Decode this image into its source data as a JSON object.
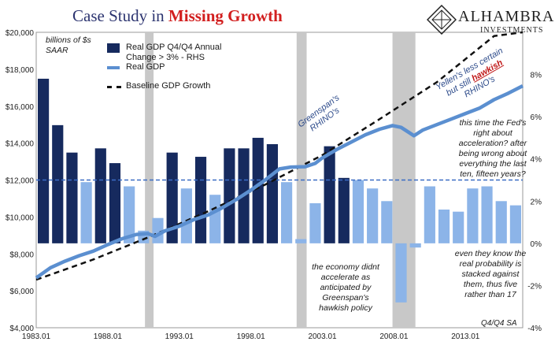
{
  "header": {
    "title_prefix": "Case Study in ",
    "title_highlight": "Missing Growth",
    "logo_name": "ALHAMBRA",
    "logo_sub": "INVESTMENTS"
  },
  "units_label": "billions of $s\nSAAR",
  "source_label": "Q4/Q4 SA",
  "legend": {
    "bars": "Real GDP Q4/Q4 Annual Change > 3% - RHS",
    "line": "Real GDP",
    "baseline": "Baseline GDP Growth"
  },
  "annotations": {
    "greenspan_rhinos": "Greenspan's\nRHINO's",
    "yellen_line1": "Yellen's less certain",
    "yellen_line2_pre": "but still ",
    "yellen_hawkish": "hawkish",
    "yellen_line3": "RHINO's",
    "fed_right": "this time the Fed's\nright about\nacceleration? after\nbeing wrong about\neverything the last\nten, fifteen years?",
    "real_probability": "even they know the\nreal probability is\nstacked against\nthem, thus five\nrather than 17",
    "economy_didnt": "the economy didnt\naccelerate as\nanticipated by\nGreenspan's\nhawkish policy"
  },
  "colors": {
    "bar_above": "#162a5e",
    "bar_below": "#8cb4e8",
    "line": "#5b8fd0",
    "baseline": "#111111",
    "recession": "#c8c8c8",
    "threshold": "#3b6cc4",
    "title": "#2c3470",
    "highlight": "#d21f1f"
  },
  "chart_data": {
    "type": "bar+line",
    "left_axis": {
      "min": 4000,
      "max": 20000,
      "ticks": [
        4000,
        6000,
        8000,
        10000,
        12000,
        14000,
        16000,
        18000,
        20000
      ],
      "tick_labels": [
        "$4,000",
        "$6,000",
        "$8,000",
        "$10,000",
        "$12,000",
        "$14,000",
        "$16,000",
        "$18,000",
        "$20,000"
      ]
    },
    "right_axis": {
      "min": -4,
      "max": 10,
      "ticks": [
        -4,
        -2,
        0,
        2,
        4,
        6,
        8
      ],
      "tick_labels": [
        "-4%",
        "-2%",
        "0%",
        "2%",
        "4%",
        "6%",
        "8%"
      ]
    },
    "x_axis": {
      "start": 1983.0,
      "end": 2017.0,
      "tick_labels": [
        "1983.01",
        "1988.01",
        "1993.01",
        "1998.01",
        "2003.01",
        "2008.01",
        "2013.01"
      ],
      "ticks": [
        1983.0,
        1988.0,
        1993.0,
        1998.0,
        2003.0,
        2008.0,
        2013.0
      ]
    },
    "threshold_pct": 3.0,
    "recessions": [
      [
        1990.6,
        1991.2
      ],
      [
        2001.2,
        2001.9
      ],
      [
        2007.9,
        2009.5
      ]
    ],
    "annual_change": {
      "years": [
        1983,
        1984,
        1985,
        1986,
        1987,
        1988,
        1989,
        1990,
        1991,
        1992,
        1993,
        1994,
        1995,
        1996,
        1997,
        1998,
        1999,
        2000,
        2001,
        2002,
        2003,
        2004,
        2005,
        2006,
        2007,
        2008,
        2009,
        2010,
        2011,
        2012,
        2013,
        2014,
        2015,
        2016
      ],
      "values": [
        7.8,
        5.6,
        4.3,
        2.9,
        4.5,
        3.8,
        2.7,
        0.6,
        1.2,
        4.3,
        2.6,
        4.1,
        2.3,
        4.5,
        4.5,
        5.0,
        4.7,
        2.9,
        0.2,
        1.9,
        4.6,
        3.1,
        3.0,
        2.6,
        2.0,
        -2.8,
        -0.2,
        2.7,
        1.6,
        1.5,
        2.6,
        2.7,
        2.0,
        1.8
      ]
    },
    "real_gdp": {
      "x": [
        1983.0,
        1984.0,
        1985.0,
        1986.0,
        1987.0,
        1988.0,
        1989.0,
        1990.0,
        1990.8,
        1991.3,
        1992.0,
        1993.0,
        1994.0,
        1995.0,
        1996.0,
        1997.0,
        1998.0,
        1999.0,
        2000.0,
        2000.8,
        2001.8,
        2002.5,
        2003.0,
        2004.0,
        2005.0,
        2006.0,
        2007.0,
        2007.9,
        2008.5,
        2009.4,
        2010.0,
        2011.0,
        2012.0,
        2013.0,
        2014.0,
        2015.0,
        2016.0,
        2017.0
      ],
      "y": [
        6700,
        7250,
        7600,
        7900,
        8150,
        8500,
        8820,
        9050,
        9100,
        8950,
        9250,
        9500,
        9850,
        10100,
        10500,
        10950,
        11450,
        12000,
        12600,
        12700,
        12720,
        12900,
        13200,
        13650,
        14050,
        14450,
        14750,
        14950,
        14850,
        14400,
        14700,
        15000,
        15300,
        15600,
        15900,
        16350,
        16700,
        17100
      ]
    },
    "baseline": {
      "x": [
        1983.0,
        1987.0,
        1991.0,
        1995.0,
        1999.0,
        2003.0,
        2007.0,
        2011.0,
        2015.0,
        2017.0
      ],
      "y": [
        6600,
        7700,
        8950,
        10300,
        11750,
        13350,
        15300,
        17300,
        19800,
        20000
      ]
    }
  }
}
